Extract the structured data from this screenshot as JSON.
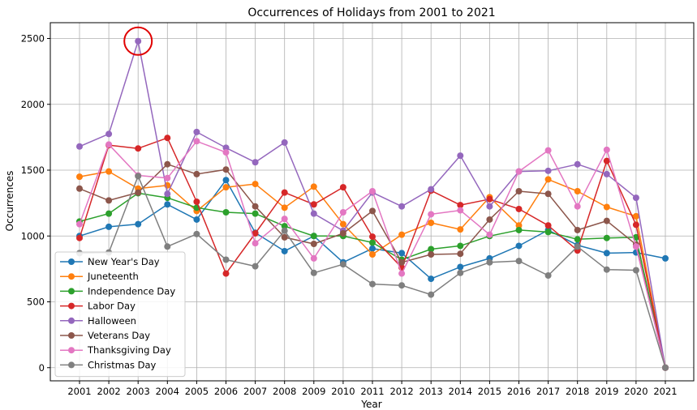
{
  "chart_data": {
    "type": "line",
    "title": "Occurrences of Holidays from 2001 to 2021",
    "xlabel": "Year",
    "ylabel": "Occurrences",
    "x": [
      "2001",
      "2002",
      "2003",
      "2004",
      "2005",
      "2006",
      "2007",
      "2008",
      "2009",
      "2010",
      "2011",
      "2012",
      "2013",
      "2014",
      "2015",
      "2016",
      "2017",
      "2018",
      "2019",
      "2020",
      "2021"
    ],
    "ylim": [
      -100,
      2620
    ],
    "yticks": [
      0,
      500,
      1000,
      1500,
      2000,
      2500
    ],
    "grid": true,
    "legend_position": "lower-left",
    "highlight": {
      "series": "Halloween",
      "x": "2003",
      "y": 2480,
      "color": "#e00000"
    },
    "series": [
      {
        "name": "New Year's Day",
        "color": "#1f77b4",
        "values": [
          1000,
          1070,
          1090,
          1240,
          1125,
          1425,
          1025,
          885,
          1000,
          800,
          905,
          870,
          675,
          765,
          830,
          925,
          1045,
          930,
          870,
          875,
          830
        ]
      },
      {
        "name": "Juneteenth",
        "color": "#ff7f0e",
        "values": [
          1450,
          1490,
          1360,
          1385,
          1190,
          1370,
          1395,
          1215,
          1375,
          1090,
          860,
          1010,
          1100,
          1050,
          1295,
          1080,
          1430,
          1340,
          1220,
          1150,
          0
        ]
      },
      {
        "name": "Independence Day",
        "color": "#2ca02c",
        "values": [
          1110,
          1170,
          1325,
          1290,
          1215,
          1180,
          1170,
          1075,
          1000,
          1000,
          950,
          820,
          900,
          925,
          1000,
          1045,
          1030,
          975,
          985,
          990,
          0
        ]
      },
      {
        "name": "Labor Day",
        "color": "#d62728",
        "values": [
          985,
          1690,
          1665,
          1745,
          1260,
          715,
          1020,
          1330,
          1240,
          1370,
          995,
          760,
          1345,
          1235,
          1280,
          1205,
          1080,
          890,
          1570,
          1085,
          0
        ]
      },
      {
        "name": "Halloween",
        "color": "#9467bd",
        "values": [
          1680,
          1775,
          2480,
          1320,
          1790,
          1670,
          1560,
          1710,
          1170,
          1040,
          1330,
          1225,
          1355,
          1610,
          1225,
          1490,
          1495,
          1545,
          1470,
          1290,
          0
        ]
      },
      {
        "name": "Veterans Day",
        "color": "#8c564b",
        "values": [
          1360,
          1270,
          1330,
          1545,
          1470,
          1505,
          1225,
          990,
          940,
          1020,
          1190,
          800,
          860,
          865,
          1125,
          1340,
          1320,
          1045,
          1115,
          935,
          0
        ]
      },
      {
        "name": "Thanksgiving Day",
        "color": "#e377c2",
        "values": [
          1090,
          1695,
          1460,
          1440,
          1720,
          1635,
          945,
          1130,
          830,
          1180,
          1340,
          715,
          1165,
          1195,
          1010,
          1490,
          1650,
          1225,
          1655,
          920,
          0
        ]
      },
      {
        "name": "Christmas Day",
        "color": "#7f7f7f",
        "values": [
          870,
          875,
          1455,
          920,
          1015,
          820,
          770,
          1040,
          720,
          785,
          635,
          625,
          555,
          720,
          800,
          810,
          700,
          920,
          745,
          740,
          0
        ]
      }
    ]
  }
}
